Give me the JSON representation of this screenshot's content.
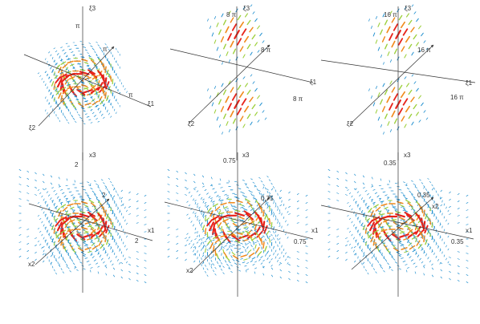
{
  "panels": [
    {
      "id": "top-left",
      "variable": "xi",
      "labels": {
        "up": "ξ3",
        "right": "ξ1",
        "left": "ξ2",
        "tick_up": "π",
        "tick_right": "π",
        "tick_diag": "π"
      },
      "field": "ring"
    },
    {
      "id": "top-middle",
      "variable": "xi",
      "labels": {
        "up": "ξ3",
        "right": "ξ1",
        "left": "ξ2",
        "tick_up": "8 π",
        "tick_right": "8 π",
        "tick_diag": "8 π"
      },
      "field": "poles"
    },
    {
      "id": "top-right",
      "variable": "xi",
      "labels": {
        "up": "ξ3",
        "right": "ξ1",
        "left": "ξ2",
        "tick_up": "16 π",
        "tick_right": "16 π",
        "tick_diag": "16 π"
      },
      "field": "poles"
    },
    {
      "id": "bottom-left",
      "variable": "x",
      "labels": {
        "up": "x3",
        "right": "x1",
        "left": "x2",
        "tick_up": "2",
        "tick_right": "2",
        "tick_diag": "2"
      },
      "field": "ring-spread"
    },
    {
      "id": "bottom-middle",
      "variable": "x",
      "labels": {
        "up": "x3",
        "right": "x1",
        "left": "x2",
        "tick_up": "0.75",
        "tick_right": "0.75",
        "tick_diag": "0.75"
      },
      "field": "ring-lower"
    },
    {
      "id": "bottom-right",
      "variable": "x",
      "labels": {
        "up": "x3",
        "right": "x1",
        "left": "x2",
        "tick_up": "0.35",
        "tick_right": "0.35",
        "tick_diag": "0.35"
      },
      "field": "ring-spread"
    }
  ],
  "colors": {
    "axis": "#333333",
    "strong": "#e8231a",
    "medium": "#f08a1c",
    "weak": "#9ccf3a",
    "faint": "#1f8fcf"
  }
}
